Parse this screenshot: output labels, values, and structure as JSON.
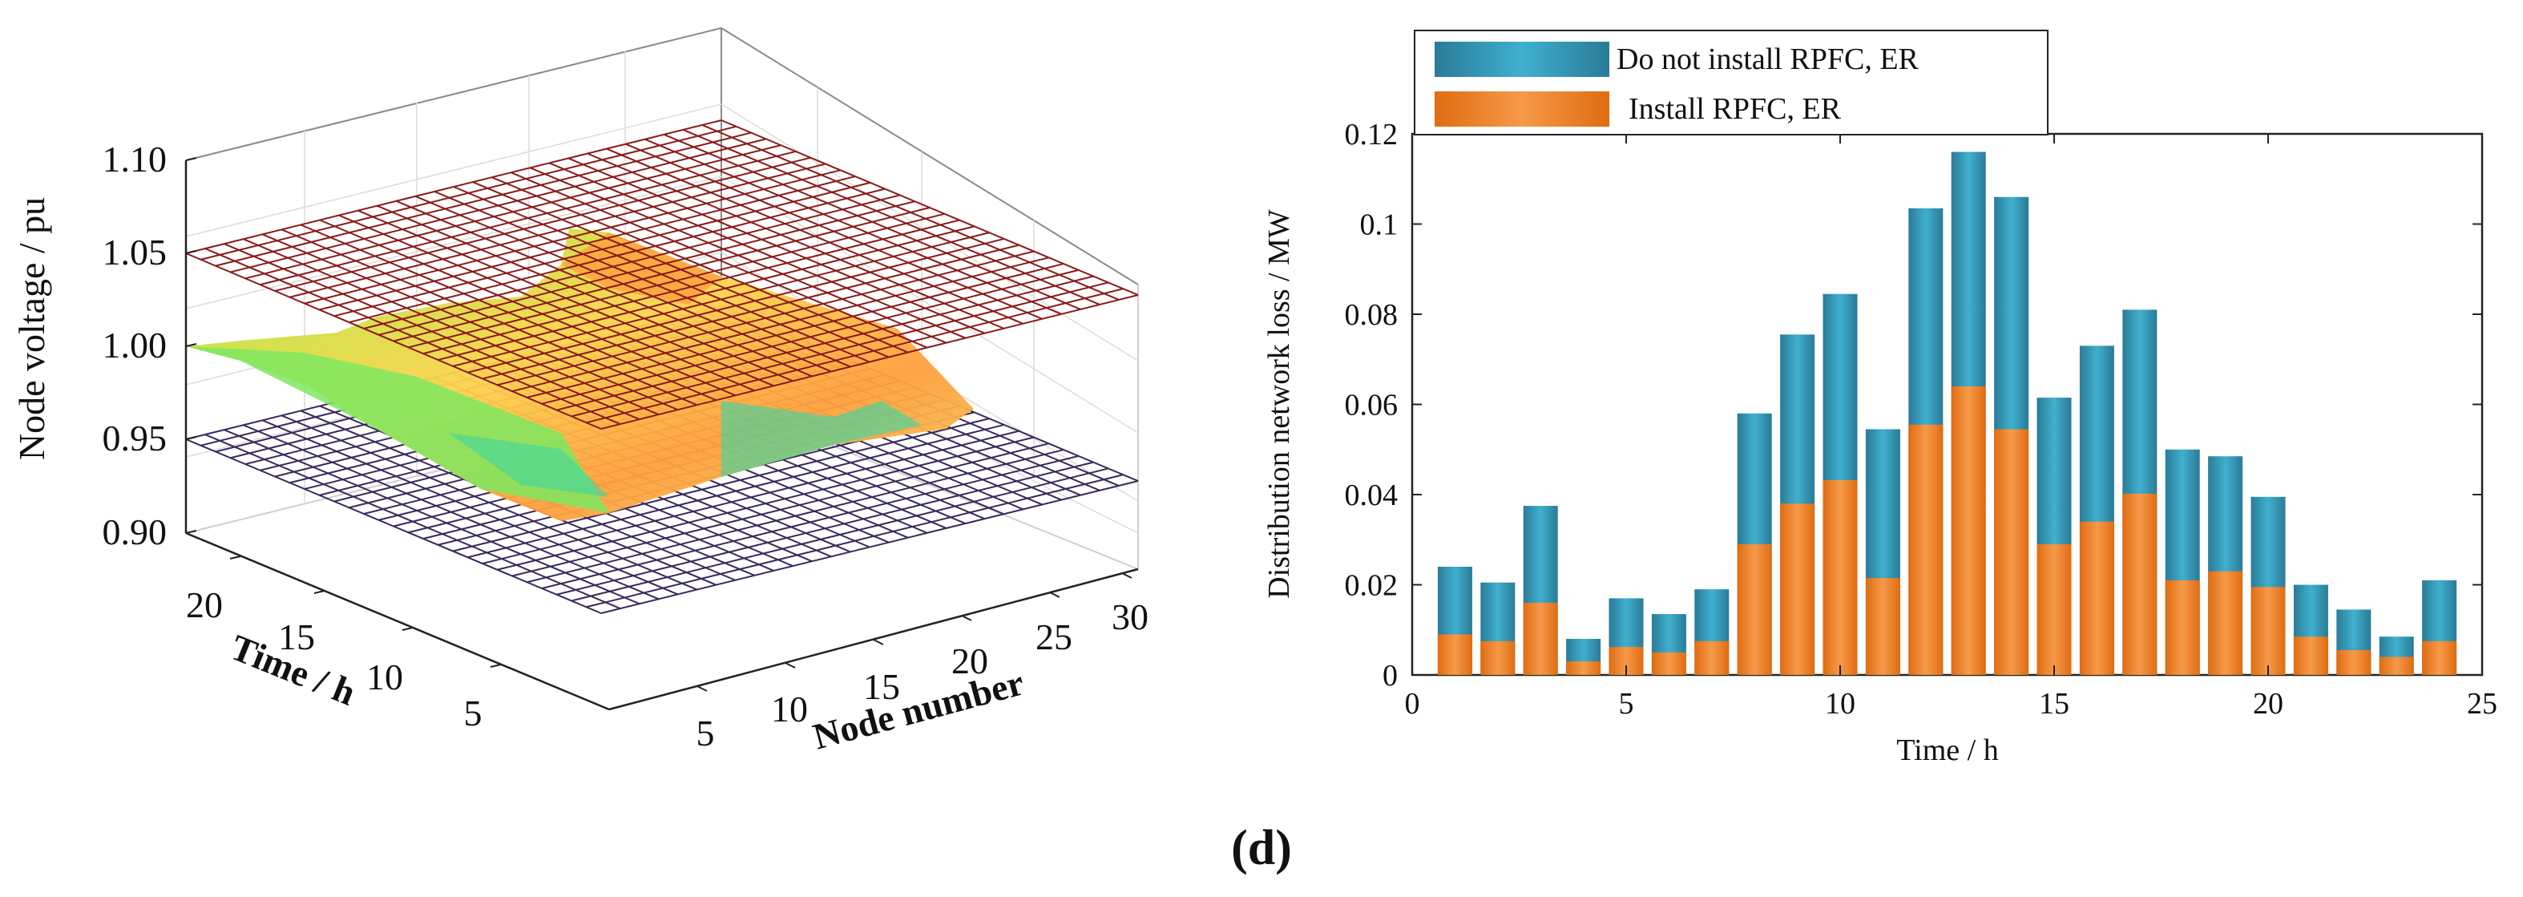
{
  "panel_label": "(d)",
  "colors": {
    "no_install_bar": "#2f8fae",
    "install_bar": "#ef8430",
    "upper_grid": "#8b1a1a",
    "lower_grid": "#3a2a5c"
  },
  "chart_data": [
    {
      "type": "surface3d",
      "title": "",
      "zlabel": "Node voltage / pu",
      "xlabel": "Node number",
      "ylabel": "Time / h",
      "zlim": [
        0.9,
        1.1
      ],
      "z_ticks": [
        "0.90",
        "0.95",
        "1.00",
        "1.05",
        "1.10"
      ],
      "x_ticks": [
        "5",
        "10",
        "15",
        "20",
        "25",
        "30"
      ],
      "y_ticks": [
        "5",
        "10",
        "15",
        "20"
      ],
      "upper_limit_pu": 1.05,
      "lower_limit_pu": 0.95,
      "surface_range_pu": [
        0.96,
        1.04
      ]
    },
    {
      "type": "bar",
      "title": "",
      "xlabel": "Time / h",
      "ylabel": "Distribution network loss / MW",
      "xlim": [
        0,
        25
      ],
      "ylim": [
        0,
        0.12
      ],
      "x_ticks": [
        "0",
        "5",
        "10",
        "15",
        "20",
        "25"
      ],
      "y_ticks": [
        "0",
        "0.02",
        "0.04",
        "0.06",
        "0.08",
        "0.1",
        "0.12"
      ],
      "categories": [
        1,
        2,
        3,
        4,
        5,
        6,
        7,
        8,
        9,
        10,
        11,
        12,
        13,
        14,
        15,
        16,
        17,
        18,
        19,
        20,
        21,
        22,
        23,
        24
      ],
      "series": [
        {
          "name": "Do not install RPFC, ER",
          "values": [
            0.024,
            0.0205,
            0.0375,
            0.008,
            0.017,
            0.0135,
            0.019,
            0.058,
            0.0755,
            0.0845,
            0.0545,
            0.1035,
            0.116,
            0.106,
            0.0615,
            0.073,
            0.081,
            0.05,
            0.0485,
            0.0395,
            0.02,
            0.0145,
            0.0085,
            0.021
          ]
        },
        {
          "name": "Install RPFC, ER",
          "values": [
            0.009,
            0.0075,
            0.016,
            0.003,
            0.0062,
            0.005,
            0.0075,
            0.029,
            0.038,
            0.0432,
            0.0215,
            0.0555,
            0.064,
            0.0545,
            0.029,
            0.034,
            0.0402,
            0.021,
            0.023,
            0.0195,
            0.0085,
            0.0055,
            0.004,
            0.0075
          ]
        }
      ],
      "legend": {
        "position": "top-left",
        "entries": [
          "Do not install RPFC, ER",
          "Install RPFC, ER"
        ]
      }
    }
  ]
}
